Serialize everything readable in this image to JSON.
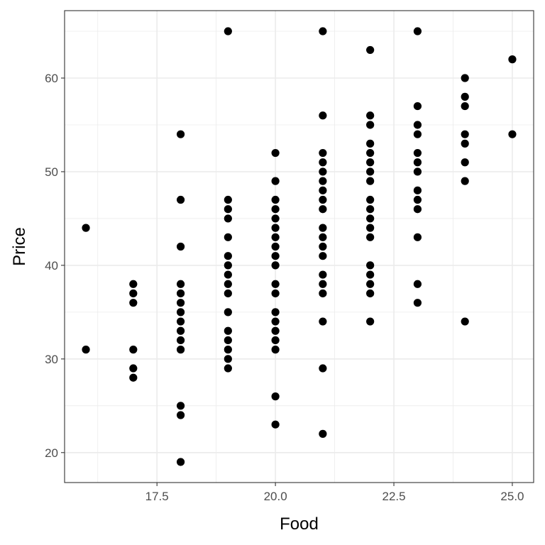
{
  "chart_data": {
    "type": "scatter",
    "title": "",
    "xlabel": "Food",
    "ylabel": "Price",
    "xlim": [
      15.55,
      25.45
    ],
    "ylim": [
      16.8,
      67.2
    ],
    "x_ticks": [
      17.5,
      20.0,
      22.5,
      25.0
    ],
    "x_tick_labels": [
      "17.5",
      "20.0",
      "22.5",
      "25.0"
    ],
    "x_minor_ticks": [
      16.25,
      18.75,
      21.25,
      23.75
    ],
    "y_ticks": [
      20,
      30,
      40,
      50,
      60
    ],
    "y_tick_labels": [
      "20",
      "30",
      "40",
      "50",
      "60"
    ],
    "y_minor_ticks": [
      25,
      35,
      45,
      55,
      65
    ],
    "grid": true,
    "legend": "none",
    "colors": {
      "point": "#000000",
      "grid": "#ebebeb",
      "border": "#333333"
    },
    "points": [
      [
        16,
        44
      ],
      [
        16,
        31
      ],
      [
        17,
        38
      ],
      [
        17,
        37
      ],
      [
        17,
        36
      ],
      [
        17,
        31
      ],
      [
        17,
        29
      ],
      [
        17,
        28
      ],
      [
        18,
        54
      ],
      [
        18,
        47
      ],
      [
        18,
        42
      ],
      [
        18,
        38
      ],
      [
        18,
        37
      ],
      [
        18,
        36
      ],
      [
        18,
        35
      ],
      [
        18,
        34
      ],
      [
        18,
        33
      ],
      [
        18,
        32
      ],
      [
        18,
        31
      ],
      [
        18,
        25
      ],
      [
        18,
        24
      ],
      [
        18,
        19
      ],
      [
        19,
        65
      ],
      [
        19,
        47
      ],
      [
        19,
        46
      ],
      [
        19,
        45
      ],
      [
        19,
        43
      ],
      [
        19,
        41
      ],
      [
        19,
        40
      ],
      [
        19,
        39
      ],
      [
        19,
        38
      ],
      [
        19,
        37
      ],
      [
        19,
        35
      ],
      [
        19,
        33
      ],
      [
        19,
        32
      ],
      [
        19,
        31
      ],
      [
        19,
        30
      ],
      [
        19,
        29
      ],
      [
        20,
        52
      ],
      [
        20,
        49
      ],
      [
        20,
        47
      ],
      [
        20,
        46
      ],
      [
        20,
        45
      ],
      [
        20,
        44
      ],
      [
        20,
        43
      ],
      [
        20,
        42
      ],
      [
        20,
        41
      ],
      [
        20,
        40
      ],
      [
        20,
        38
      ],
      [
        20,
        37
      ],
      [
        20,
        35
      ],
      [
        20,
        34
      ],
      [
        20,
        33
      ],
      [
        20,
        32
      ],
      [
        20,
        31
      ],
      [
        20,
        26
      ],
      [
        20,
        23
      ],
      [
        21,
        65
      ],
      [
        21,
        56
      ],
      [
        21,
        52
      ],
      [
        21,
        51
      ],
      [
        21,
        50
      ],
      [
        21,
        49
      ],
      [
        21,
        48
      ],
      [
        21,
        47
      ],
      [
        21,
        46
      ],
      [
        21,
        44
      ],
      [
        21,
        43
      ],
      [
        21,
        42
      ],
      [
        21,
        41
      ],
      [
        21,
        39
      ],
      [
        21,
        38
      ],
      [
        21,
        37
      ],
      [
        21,
        34
      ],
      [
        21,
        29
      ],
      [
        21,
        22
      ],
      [
        22,
        63
      ],
      [
        22,
        56
      ],
      [
        22,
        55
      ],
      [
        22,
        53
      ],
      [
        22,
        52
      ],
      [
        22,
        51
      ],
      [
        22,
        50
      ],
      [
        22,
        49
      ],
      [
        22,
        47
      ],
      [
        22,
        46
      ],
      [
        22,
        45
      ],
      [
        22,
        44
      ],
      [
        22,
        43
      ],
      [
        22,
        40
      ],
      [
        22,
        39
      ],
      [
        22,
        38
      ],
      [
        22,
        37
      ],
      [
        22,
        34
      ],
      [
        23,
        65
      ],
      [
        23,
        57
      ],
      [
        23,
        55
      ],
      [
        23,
        54
      ],
      [
        23,
        52
      ],
      [
        23,
        51
      ],
      [
        23,
        50
      ],
      [
        23,
        48
      ],
      [
        23,
        47
      ],
      [
        23,
        46
      ],
      [
        23,
        43
      ],
      [
        23,
        38
      ],
      [
        23,
        36
      ],
      [
        24,
        60
      ],
      [
        24,
        58
      ],
      [
        24,
        57
      ],
      [
        24,
        54
      ],
      [
        24,
        53
      ],
      [
        24,
        51
      ],
      [
        24,
        49
      ],
      [
        24,
        34
      ],
      [
        25,
        62
      ],
      [
        25,
        54
      ]
    ]
  }
}
